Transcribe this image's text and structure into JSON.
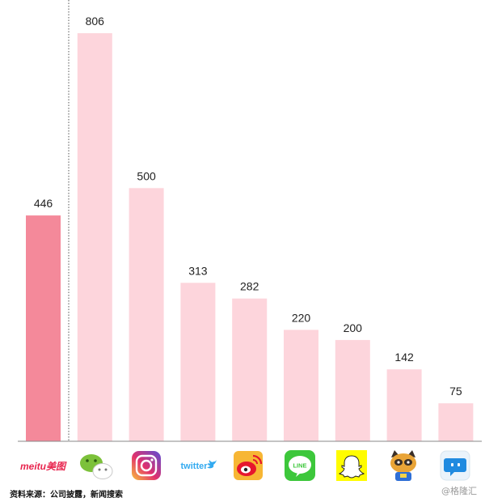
{
  "chart_data": {
    "type": "bar",
    "categories": [
      "meitu美图",
      "WeChat",
      "Instagram",
      "twitter",
      "Weibo",
      "LINE",
      "Snapchat",
      "YY",
      "Momo"
    ],
    "values": [
      446,
      806,
      500,
      313,
      282,
      220,
      200,
      142,
      75
    ],
    "highlight_index": 0,
    "ylim": [
      0,
      806
    ],
    "grid": false,
    "colors": {
      "highlight": "#f4899a",
      "bar": "#fdd5dc",
      "axis": "#888888",
      "divider": "#555555"
    },
    "icons": [
      "meitu-wordmark-icon",
      "wechat-icon",
      "instagram-icon",
      "twitter-wordmark-icon",
      "weibo-icon",
      "line-icon",
      "snapchat-icon",
      "yy-raccoon-icon",
      "momo-icon"
    ]
  },
  "logos": {
    "meitu": "meitu美图",
    "twitter": "twitter",
    "line": "LINE"
  },
  "footer": {
    "source": "资料来源：公司披露，新闻搜索",
    "watermark": "@格隆汇"
  }
}
